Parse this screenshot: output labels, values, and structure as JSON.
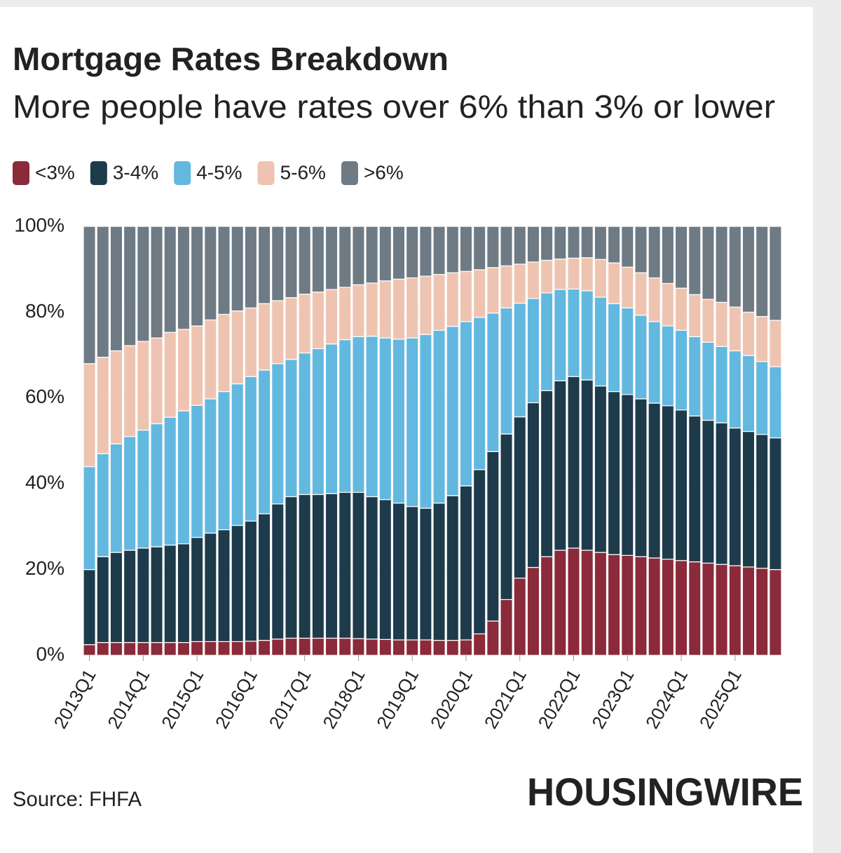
{
  "chart_data": {
    "type": "stacked_bar",
    "title": "Mortgage Rates Breakdown",
    "subtitle": "More people have rates over 6% than 3% or lower",
    "source": "Source: FHFA",
    "brand": "HOUSINGWIRE",
    "categories": [
      "2013Q1",
      null,
      null,
      null,
      "2014Q1",
      null,
      null,
      null,
      "2015Q1",
      null,
      null,
      null,
      "2016Q1",
      null,
      null,
      null,
      "2017Q1",
      null,
      null,
      null,
      "2018Q1",
      null,
      null,
      null,
      "2019Q1",
      null,
      null,
      null,
      "2020Q1",
      null,
      null,
      null,
      "2021Q1",
      null,
      null,
      null,
      "2022Q1",
      null,
      null,
      null,
      "2023Q1",
      null,
      null,
      null,
      "2024Q1",
      null,
      null,
      null,
      "2025Q1",
      null,
      null,
      null
    ],
    "series": [
      {
        "name": "<3%",
        "color": "#8b2a3a",
        "values": [
          2.5,
          3,
          3,
          3,
          3,
          3,
          3,
          3,
          3.2,
          3.2,
          3.2,
          3.2,
          3.3,
          3.5,
          3.8,
          4,
          4,
          4,
          4,
          4,
          3.9,
          3.8,
          3.7,
          3.6,
          3.6,
          3.6,
          3.5,
          3.5,
          3.6,
          5,
          8,
          13,
          18,
          20.5,
          23,
          24.5,
          25,
          24.5,
          24,
          23.5,
          23.3,
          23,
          22.7,
          22.4,
          22.1,
          21.8,
          21.5,
          21.2,
          20.9,
          20.6,
          20.3,
          20
        ]
      },
      {
        "name": "3-4%",
        "color": "#1e3b4c",
        "values": [
          17.5,
          20,
          21,
          21.5,
          22,
          22.3,
          22.7,
          23,
          24.3,
          25.3,
          26.1,
          27.1,
          28,
          29.5,
          31.5,
          33,
          33.5,
          33.5,
          33.7,
          34,
          34.1,
          33.2,
          32.6,
          31.9,
          31.1,
          30.7,
          32,
          33.7,
          35.9,
          38.3,
          39.5,
          38.6,
          37.6,
          38.4,
          38.7,
          39.5,
          40,
          39.7,
          38.8,
          38,
          37.5,
          36.8,
          36.1,
          35.8,
          35.1,
          34,
          33.3,
          33,
          32.1,
          31.6,
          31.2,
          30.7
        ]
      },
      {
        "name": "4-5%",
        "color": "#63b8e0",
        "values": [
          24,
          24,
          25.3,
          26.5,
          27.5,
          28.7,
          29.8,
          31,
          30.8,
          31.3,
          32.2,
          33,
          33.7,
          33.5,
          32.7,
          32,
          33,
          34,
          34.9,
          35.6,
          36.3,
          37.4,
          37.7,
          38.2,
          39.3,
          40.5,
          40.3,
          39.5,
          38.3,
          35.5,
          32.3,
          29.4,
          26.5,
          24.3,
          22.8,
          21.3,
          20.4,
          20.8,
          20.7,
          20.5,
          20.2,
          19.5,
          19,
          18.6,
          18.6,
          18.5,
          18.2,
          17.8,
          18,
          17.7,
          17,
          16.6
        ]
      },
      {
        "name": "5-6%",
        "color": "#eec4b1",
        "values": [
          24,
          22.5,
          21.7,
          21.2,
          20.7,
          20,
          19.8,
          19,
          18.5,
          18.4,
          18,
          17,
          16,
          15.5,
          14.7,
          14.4,
          13.7,
          13.2,
          12.7,
          12.2,
          12.1,
          12.4,
          13.3,
          14,
          14,
          13.6,
          13,
          12.5,
          11.7,
          11.1,
          10.6,
          9.8,
          9.1,
          8.5,
          7.6,
          7.1,
          7.2,
          7.7,
          8.8,
          9.5,
          9.5,
          9.9,
          10.2,
          9.9,
          9.8,
          9.8,
          10,
          10.3,
          10.2,
          10.1,
          10.5,
          10.8
        ]
      },
      {
        "name": ">6%",
        "color": "#6e7a84",
        "values": [
          32,
          30.5,
          29,
          27.8,
          26.8,
          26,
          24.7,
          24,
          23.2,
          21.8,
          20.5,
          19.7,
          19,
          18,
          17.3,
          16.6,
          15.8,
          15.3,
          14.7,
          14.2,
          13.6,
          13.2,
          12.7,
          12.3,
          12,
          11.6,
          11.2,
          10.8,
          10.5,
          10.1,
          9.6,
          9.2,
          8.8,
          8.3,
          7.9,
          7.6,
          7.4,
          7.3,
          7.7,
          8.5,
          9.5,
          10.8,
          12,
          13.3,
          14.4,
          15.9,
          17,
          17.7,
          18.8,
          20,
          21,
          21.9
        ]
      }
    ],
    "ylim": [
      0,
      100
    ],
    "yticks": [
      {
        "value": 0,
        "label": "0%"
      },
      {
        "value": 20,
        "label": "20%"
      },
      {
        "value": 40,
        "label": "40%"
      },
      {
        "value": 60,
        "label": "60%"
      },
      {
        "value": 80,
        "label": "80%"
      },
      {
        "value": 100,
        "label": "100%"
      }
    ],
    "grid": true
  }
}
